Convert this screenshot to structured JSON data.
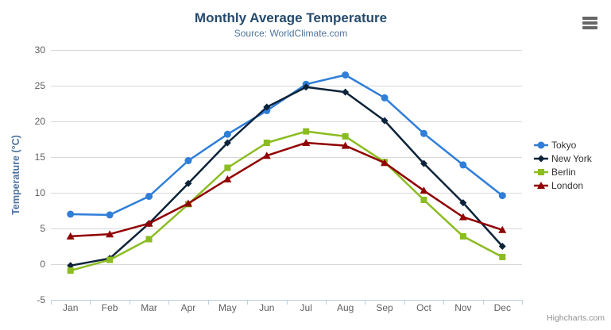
{
  "palette": {
    "title": "#274b6d",
    "subtitle": "#4d759e",
    "axis_title": "#4d759e",
    "axis_labels": "#606060",
    "axis_line": "#c0d0e0",
    "gridline": "#d8d8d8",
    "legend_text": "#333333",
    "credits": "#909090",
    "menu_icon": "#666666",
    "background": "#ffffff"
  },
  "export_menu": {
    "icon": "hamburger-icon"
  },
  "credits": {
    "label": "Highcharts.com"
  },
  "chart_data": {
    "type": "line",
    "title": "Monthly Average Temperature",
    "subtitle": "Source: WorldClimate.com",
    "categories": [
      "Jan",
      "Feb",
      "Mar",
      "Apr",
      "May",
      "Jun",
      "Jul",
      "Aug",
      "Sep",
      "Oct",
      "Nov",
      "Dec"
    ],
    "xlabel": "",
    "ylabel": "Temperature (°C)",
    "ylim": [
      -5,
      30
    ],
    "ytick_interval": 5,
    "grid": "horizontal",
    "legend_position": "right",
    "series": [
      {
        "name": "Tokyo",
        "color": "#2f7ed8",
        "marker": "circle",
        "values": [
          7.0,
          6.9,
          9.5,
          14.5,
          18.2,
          21.5,
          25.2,
          26.5,
          23.3,
          18.3,
          13.9,
          9.6
        ]
      },
      {
        "name": "New York",
        "color": "#0d233a",
        "marker": "diamond",
        "values": [
          -0.2,
          0.8,
          5.7,
          11.3,
          17.0,
          22.0,
          24.8,
          24.1,
          20.1,
          14.1,
          8.6,
          2.5
        ]
      },
      {
        "name": "Berlin",
        "color": "#8bbc21",
        "marker": "square",
        "values": [
          -0.9,
          0.6,
          3.5,
          8.4,
          13.5,
          17.0,
          18.6,
          17.9,
          14.3,
          9.0,
          3.9,
          1.0
        ]
      },
      {
        "name": "London",
        "color": "#910000",
        "marker": "triangle",
        "values": [
          3.9,
          4.2,
          5.7,
          8.5,
          11.9,
          15.2,
          17.0,
          16.6,
          14.2,
          10.3,
          6.6,
          4.8
        ]
      }
    ]
  }
}
